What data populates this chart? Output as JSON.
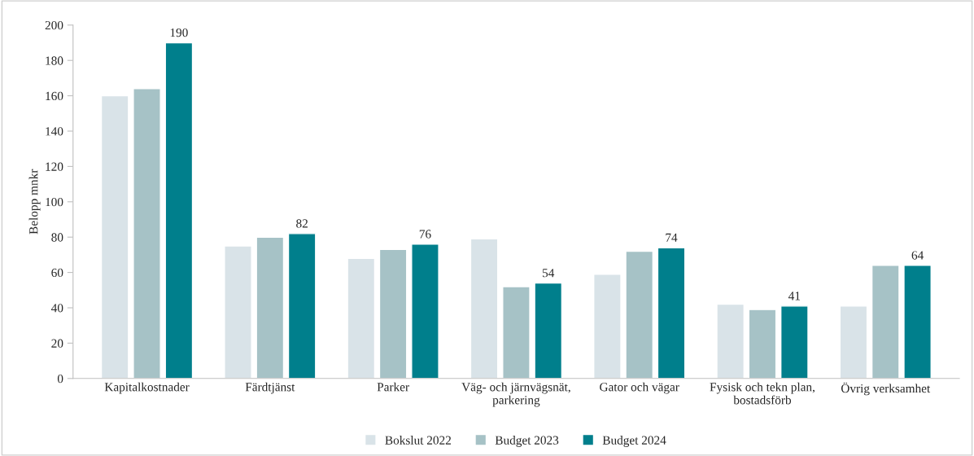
{
  "chart_data": {
    "type": "bar",
    "ylabel": "Belopp mnkr",
    "categories": [
      "Kapitalkostnader",
      "Färdtjänst",
      "Parker",
      "Väg- och järnvägsnät,\nparkering",
      "Gator och vägar",
      "Fysisk och tekn plan,\nbostadsförb",
      "Övrig verksamhet"
    ],
    "series": [
      {
        "name": "Bokslut 2022",
        "color": "#d9e3e8",
        "values": [
          160,
          75,
          68,
          79,
          59,
          42,
          41
        ]
      },
      {
        "name": "Budget 2023",
        "color": "#a6c2c6",
        "values": [
          164,
          80,
          73,
          52,
          72,
          39,
          64
        ]
      },
      {
        "name": "Budget 2024",
        "color": "#007f8c",
        "values": [
          190,
          82,
          76,
          54,
          74,
          41,
          64
        ],
        "value_labels": [
          "190",
          "82",
          "76",
          "54",
          "74",
          "41",
          "64"
        ]
      }
    ],
    "ylim": [
      0,
      200
    ],
    "yticks": [
      0,
      20,
      40,
      60,
      80,
      100,
      120,
      140,
      160,
      180,
      200
    ],
    "grid": false,
    "legend": "bottom"
  }
}
